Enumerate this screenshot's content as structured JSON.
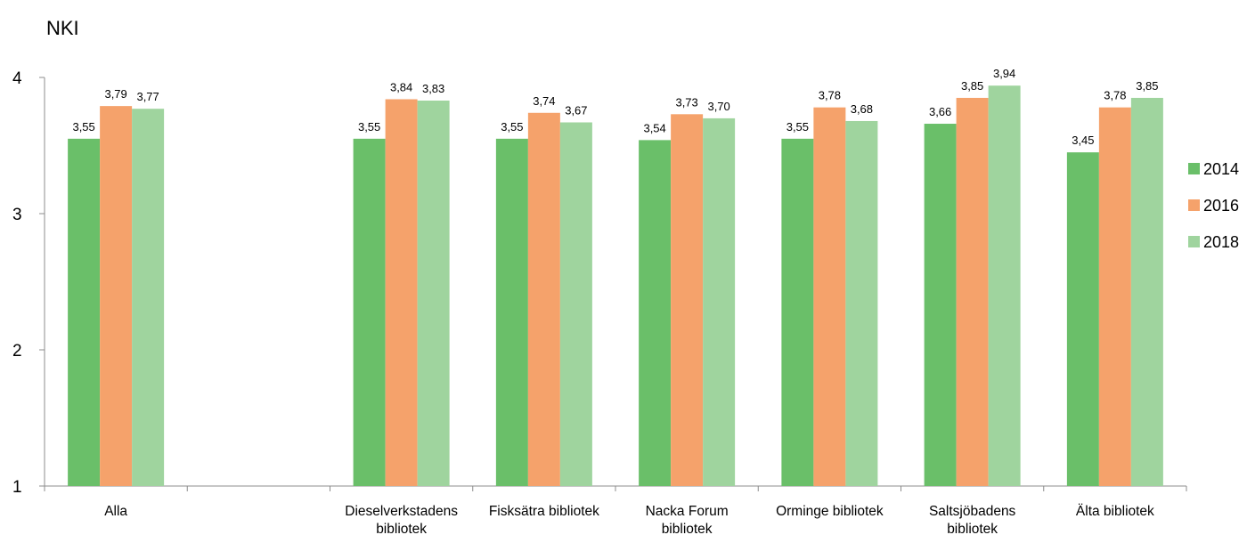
{
  "chart_data": {
    "type": "bar",
    "title": "NKI",
    "categories": [
      [
        "Alla"
      ],
      [
        ""
      ],
      [
        "Dieselverkstadens",
        "bibliotek"
      ],
      [
        "Fisksätra bibliotek"
      ],
      [
        "Nacka Forum",
        "bibliotek"
      ],
      [
        "Orminge bibliotek"
      ],
      [
        "Saltsjöbadens",
        "bibliotek"
      ],
      [
        "Älta bibliotek"
      ]
    ],
    "series": [
      {
        "name": "2014",
        "color": "#6abf69",
        "values": [
          3.55,
          null,
          3.55,
          3.55,
          3.54,
          3.55,
          3.66,
          3.45
        ],
        "labels": [
          "3,55",
          "",
          "3,55",
          "3,55",
          "3,54",
          "3,55",
          "3,66",
          "3,45"
        ]
      },
      {
        "name": "2016",
        "color": "#f5a26b",
        "values": [
          3.79,
          null,
          3.84,
          3.74,
          3.73,
          3.78,
          3.85,
          3.78
        ],
        "labels": [
          "3,79",
          "",
          "3,84",
          "3,74",
          "3,73",
          "3,78",
          "3,85",
          "3,78"
        ]
      },
      {
        "name": "2018",
        "color": "#9fd49e",
        "values": [
          3.77,
          null,
          3.83,
          3.67,
          3.7,
          3.68,
          3.94,
          3.85
        ],
        "labels": [
          "3,77",
          "",
          "3,83",
          "3,67",
          "3,70",
          "3,68",
          "3,94",
          "3,85"
        ]
      }
    ],
    "ylim": [
      1,
      4
    ],
    "yticks": [
      "1",
      "2",
      "3",
      "4"
    ],
    "xlabel": "",
    "ylabel": "",
    "grid": false,
    "legend_position": "right"
  }
}
